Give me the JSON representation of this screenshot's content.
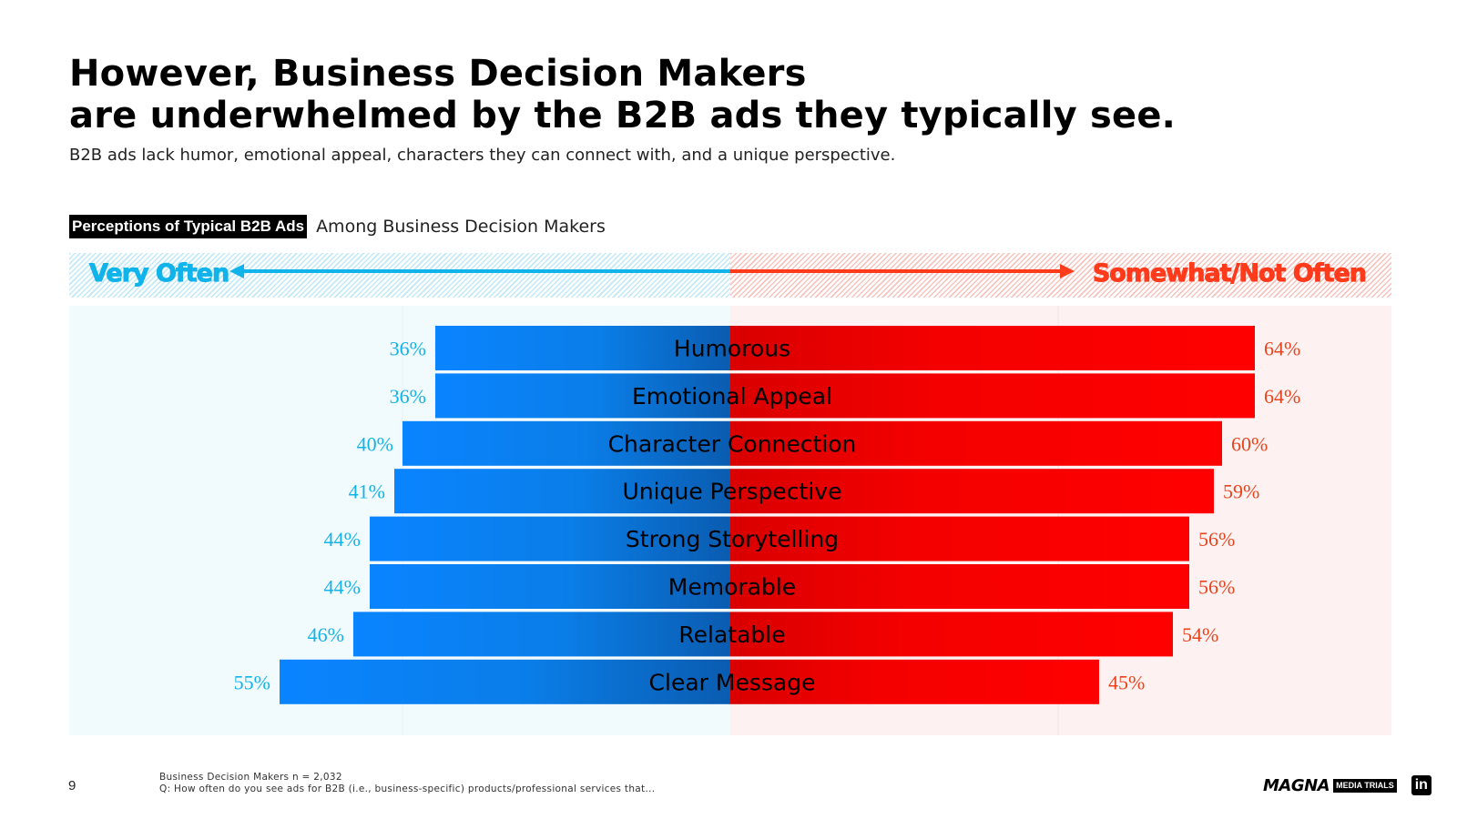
{
  "slide": {
    "title_line1": "However, Business Decision Makers",
    "title_line2": "are underwhelmed by the B2B ads they typically see.",
    "subtitle": "B2B ads lack humor, emotional appeal, characters they can connect with, and a unique perspective.",
    "chart_label": "Perceptions of Typical B2B Ads",
    "chart_sublabel": "Among Business Decision Makers",
    "page_number": "9",
    "footnote_1": "Business Decision Makers n = 2,032",
    "footnote_2": "Q: How often do you see ads for B2B (i.e., business-specific) products/professional services that...",
    "logo_magna": "MAGNA",
    "logo_trials": "MEDIA TRIALS",
    "logo_linkedin": "in"
  },
  "colors": {
    "very_often": "#0a84ff",
    "very_often_label": "#11b4ea",
    "not_often": "#ff0000",
    "not_often_label": "#e8451e"
  },
  "chart_data": {
    "type": "bar",
    "orientation": "horizontal-diverging",
    "title": "Perceptions of Typical B2B Ads",
    "categories": [
      "Humorous",
      "Emotional Appeal",
      "Character Connection",
      "Unique Perspective",
      "Strong Storytelling",
      "Memorable",
      "Relatable",
      "Clear Message"
    ],
    "series": [
      {
        "name": "Very Often",
        "values": [
          36,
          36,
          40,
          41,
          44,
          44,
          46,
          55
        ],
        "labels": [
          "36%",
          "36%",
          "40%",
          "41%",
          "44%",
          "44%",
          "46%",
          "55%"
        ]
      },
      {
        "name": "Somewhat/Not Often",
        "values": [
          64,
          64,
          60,
          59,
          56,
          56,
          54,
          45
        ],
        "labels": [
          "64%",
          "64%",
          "60%",
          "59%",
          "56%",
          "56%",
          "54%",
          "45%"
        ]
      }
    ],
    "xlim": [
      -80,
      80
    ],
    "unit": "%",
    "legend": "top"
  }
}
